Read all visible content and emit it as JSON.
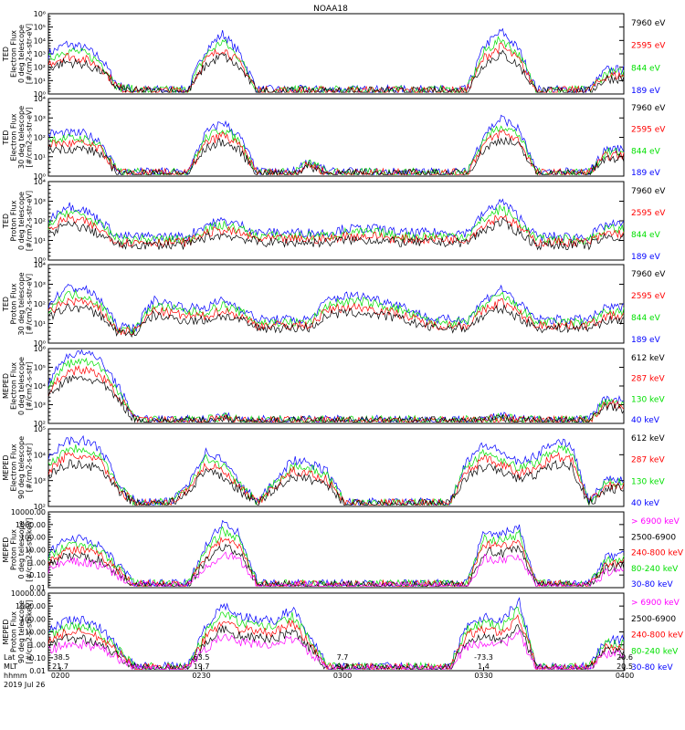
{
  "title": "NOAA18",
  "colors": {
    "blue": "#0000ff",
    "red": "#ff0000",
    "green": "#00e000",
    "black": "#000000",
    "magenta": "#ff00ff"
  },
  "chart_data": {
    "type": "line",
    "panels": [
      {
        "ylabel": [
          "TED",
          "Electron Flux",
          "0 deg telescope",
          "[#/cm2-s-str-eV]"
        ],
        "ylim": [
          1,
          1000000
        ],
        "scale": "log",
        "yticks": [
          "10⁰",
          "10¹",
          "10²",
          "10³",
          "10⁴",
          "10⁵",
          "10⁶"
        ],
        "legend": [
          {
            "label": "7960 eV",
            "color": "black"
          },
          {
            "label": "2595 eV",
            "color": "red"
          },
          {
            "label": "844 eV",
            "color": "green"
          },
          {
            "label": "189 eV",
            "color": "blue"
          }
        ],
        "profile": [
          0.5,
          0.62,
          0.58,
          0.45,
          0.1,
          0.05,
          0.05,
          0.05,
          0.05,
          0.55,
          0.75,
          0.5,
          0.05,
          0.05,
          0.05,
          0.05,
          0.05,
          0.05,
          0.05,
          0.05,
          0.05,
          0.05,
          0.05,
          0.05,
          0.05,
          0.6,
          0.78,
          0.55,
          0.05,
          0.05,
          0.05,
          0.05,
          0.3,
          0.3
        ]
      },
      {
        "ylabel": [
          "TED",
          "Electron Flux",
          "30 deg telescope",
          "[#/cm2-s-str-eV]"
        ],
        "ylim": [
          1,
          100000
        ],
        "scale": "log",
        "yticks": [
          "10⁰",
          "10¹",
          "10²",
          "10³",
          "10⁴"
        ],
        "legend": [
          {
            "label": "7960 eV",
            "color": "black"
          },
          {
            "label": "2595 eV",
            "color": "red"
          },
          {
            "label": "844 eV",
            "color": "green"
          },
          {
            "label": "189 eV",
            "color": "blue"
          }
        ],
        "profile": [
          0.55,
          0.55,
          0.55,
          0.45,
          0.05,
          0.05,
          0.05,
          0.05,
          0.05,
          0.55,
          0.7,
          0.5,
          0.05,
          0.05,
          0.05,
          0.2,
          0.05,
          0.05,
          0.05,
          0.05,
          0.05,
          0.05,
          0.05,
          0.05,
          0.05,
          0.55,
          0.75,
          0.6,
          0.05,
          0.05,
          0.05,
          0.05,
          0.35,
          0.35
        ]
      },
      {
        "ylabel": [
          "TED",
          "Proton Flux",
          "0 deg telescope",
          "[#/cm2-s-str-eV]"
        ],
        "ylim": [
          1,
          100000
        ],
        "scale": "log",
        "yticks": [
          "10⁰",
          "10¹",
          "10²",
          "10³",
          "10⁴"
        ],
        "legend": [
          {
            "label": "7960 eV",
            "color": "black"
          },
          {
            "label": "2595 eV",
            "color": "red"
          },
          {
            "label": "844 eV",
            "color": "green"
          },
          {
            "label": "189 eV",
            "color": "blue"
          }
        ],
        "profile": [
          0.5,
          0.7,
          0.65,
          0.5,
          0.3,
          0.3,
          0.3,
          0.3,
          0.3,
          0.45,
          0.5,
          0.45,
          0.35,
          0.35,
          0.35,
          0.35,
          0.35,
          0.4,
          0.4,
          0.4,
          0.35,
          0.35,
          0.35,
          0.35,
          0.35,
          0.6,
          0.75,
          0.55,
          0.3,
          0.3,
          0.3,
          0.3,
          0.45,
          0.45
        ]
      },
      {
        "ylabel": [
          "TED",
          "Proton Flux",
          "30 deg telescope",
          "[#/cm2-s-str-eV]"
        ],
        "ylim": [
          1,
          100000
        ],
        "scale": "log",
        "yticks": [
          "10⁰",
          "10¹",
          "10²",
          "10³",
          "10⁴"
        ],
        "legend": [
          {
            "label": "7960 eV",
            "color": "black"
          },
          {
            "label": "2595 eV",
            "color": "red"
          },
          {
            "label": "844 eV",
            "color": "green"
          },
          {
            "label": "189 eV",
            "color": "blue"
          }
        ],
        "profile": [
          0.5,
          0.7,
          0.7,
          0.55,
          0.2,
          0.2,
          0.55,
          0.5,
          0.45,
          0.45,
          0.55,
          0.45,
          0.3,
          0.3,
          0.3,
          0.3,
          0.55,
          0.6,
          0.6,
          0.55,
          0.5,
          0.4,
          0.3,
          0.3,
          0.3,
          0.55,
          0.7,
          0.5,
          0.3,
          0.3,
          0.3,
          0.3,
          0.45,
          0.45
        ]
      },
      {
        "ylabel": [
          "MEPED",
          "Electron Flux",
          "0 deg telescope",
          "[#/cm2-s-str]"
        ],
        "ylim": [
          100,
          1000000
        ],
        "scale": "log",
        "yticks": [
          "10²",
          "10³",
          "10⁴",
          "10⁵",
          "10⁶"
        ],
        "legend": [
          {
            "label": "612 keV",
            "color": "black"
          },
          {
            "label": "287 keV",
            "color": "red"
          },
          {
            "label": "130 keV",
            "color": "green"
          },
          {
            "label": "40 keV",
            "color": "blue"
          }
        ],
        "profile": [
          0.55,
          0.9,
          0.95,
          0.85,
          0.5,
          0.05,
          0.05,
          0.05,
          0.05,
          0.05,
          0.1,
          0.05,
          0.05,
          0.05,
          0.05,
          0.05,
          0.05,
          0.05,
          0.05,
          0.05,
          0.05,
          0.05,
          0.05,
          0.05,
          0.05,
          0.05,
          0.1,
          0.05,
          0.05,
          0.05,
          0.05,
          0.05,
          0.35,
          0.3
        ]
      },
      {
        "ylabel": [
          "MEPED",
          "Electron Flux",
          "90 deg telescope",
          "[#/cm2-s-str]"
        ],
        "ylim": [
          100,
          100000
        ],
        "scale": "log",
        "yticks": [
          "10²",
          "10³",
          "10⁴",
          "10⁵"
        ],
        "legend": [
          {
            "label": "612 keV",
            "color": "black"
          },
          {
            "label": "287 keV",
            "color": "red"
          },
          {
            "label": "130 keV",
            "color": "green"
          },
          {
            "label": "40 keV",
            "color": "blue"
          }
        ],
        "profile": [
          0.6,
          0.85,
          0.85,
          0.75,
          0.3,
          0.05,
          0.05,
          0.05,
          0.3,
          0.7,
          0.6,
          0.3,
          0.05,
          0.35,
          0.6,
          0.55,
          0.45,
          0.05,
          0.05,
          0.05,
          0.05,
          0.05,
          0.05,
          0.05,
          0.6,
          0.8,
          0.7,
          0.55,
          0.65,
          0.85,
          0.8,
          0.05,
          0.35,
          0.35
        ]
      },
      {
        "ylabel": [
          "MEPED",
          "Proton Flux",
          "0 deg telescope",
          "[#/cm2-s-str-keV]"
        ],
        "ylim": [
          0.01,
          10000
        ],
        "scale": "log",
        "yticks": [
          "0.01",
          "0.10",
          "1.00",
          "10.00",
          "100.00",
          "1000.00",
          "10000.00"
        ],
        "legend": [
          {
            "label": "> 6900 keV",
            "color": "magenta"
          },
          {
            "label": "2500-6900",
            "color": "black"
          },
          {
            "label": "240-800 keV",
            "color": "red"
          },
          {
            "label": "80-240 keV",
            "color": "green"
          },
          {
            "label": "30-80 keV",
            "color": "blue"
          }
        ],
        "profile": [
          0.45,
          0.65,
          0.65,
          0.55,
          0.3,
          0.05,
          0.05,
          0.05,
          0.05,
          0.55,
          0.85,
          0.7,
          0.05,
          0.05,
          0.05,
          0.05,
          0.05,
          0.05,
          0.05,
          0.05,
          0.05,
          0.05,
          0.05,
          0.05,
          0.05,
          0.75,
          0.7,
          0.8,
          0.05,
          0.05,
          0.05,
          0.05,
          0.4,
          0.45
        ]
      },
      {
        "ylabel": [
          "MEPED",
          "Proton Flux",
          "90 deg telescope",
          "[#/cm2-s-str-keV]"
        ],
        "ylim": [
          0.01,
          10000
        ],
        "scale": "log",
        "yticks": [
          "0.01",
          "0.10",
          "1.00",
          "10.00",
          "100.00",
          "1000.00",
          "10000.00"
        ],
        "legend": [
          {
            "label": "> 6900 keV",
            "color": "magenta"
          },
          {
            "label": "2500-6900",
            "color": "black"
          },
          {
            "label": "240-800 keV",
            "color": "red"
          },
          {
            "label": "80-240 keV",
            "color": "green"
          },
          {
            "label": "30-80 keV",
            "color": "blue"
          }
        ],
        "profile": [
          0.5,
          0.65,
          0.65,
          0.55,
          0.3,
          0.05,
          0.05,
          0.05,
          0.05,
          0.55,
          0.85,
          0.7,
          0.65,
          0.65,
          0.8,
          0.45,
          0.05,
          0.05,
          0.05,
          0.05,
          0.05,
          0.05,
          0.05,
          0.05,
          0.6,
          0.7,
          0.65,
          0.9,
          0.05,
          0.05,
          0.05,
          0.05,
          0.4,
          0.4
        ]
      }
    ],
    "x_axis": {
      "row_labels": [
        "Lat",
        "MLT",
        "hhmm"
      ],
      "ticks": [
        {
          "lat": "-38.5",
          "mlt": "21.7",
          "hhmm": "0200"
        },
        {
          "lat": "63.5",
          "mlt": "19.7",
          "hhmm": "0230"
        },
        {
          "lat": "7.7",
          "mlt": "9.7",
          "hhmm": "0300"
        },
        {
          "lat": "-73.3",
          "mlt": "1.4",
          "hhmm": "0330"
        },
        {
          "lat": "20.6",
          "mlt": "20.5",
          "hhmm": "0400"
        }
      ],
      "date": "2019 Jul 26"
    }
  }
}
